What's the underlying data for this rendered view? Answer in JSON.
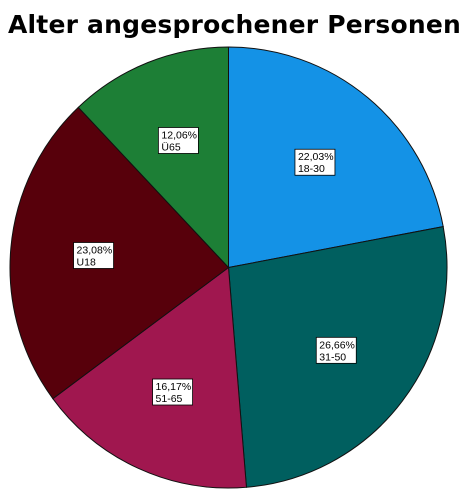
{
  "chart_data": {
    "type": "pie",
    "title": "Alter angesprochener Personen",
    "slices": [
      {
        "label": "18-30",
        "value": 22.03,
        "percent_text": "22,03%",
        "color": "#1492e6"
      },
      {
        "label": "31-50",
        "value": 26.66,
        "percent_text": "26,66%",
        "color": "#005f5f"
      },
      {
        "label": "51-65",
        "value": 16.17,
        "percent_text": "16,17%",
        "color": "#a0174f"
      },
      {
        "label": "U18",
        "value": 23.08,
        "percent_text": "23,08%",
        "color": "#57000b"
      },
      {
        "label": "Ü65",
        "value": 12.06,
        "percent_text": "12,06%",
        "color": "#1d7f36"
      }
    ],
    "start_angle_deg": 0,
    "direction": "clockwise",
    "legend": "none"
  }
}
